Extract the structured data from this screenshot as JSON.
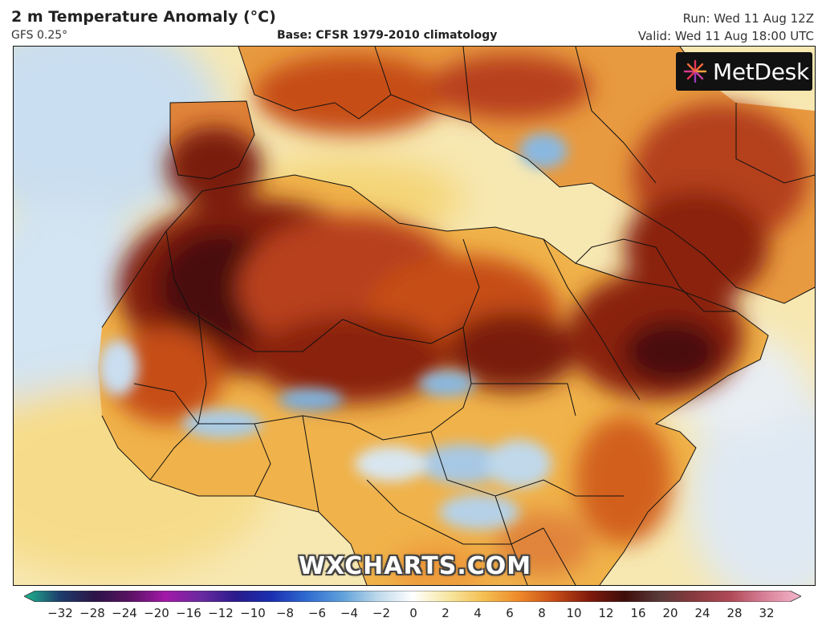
{
  "header": {
    "title": "2 m Temperature Anomaly (°C)",
    "model": "GFS 0.25°",
    "base": "Base: CFSR 1979-2010 climatology",
    "run": "Run: Wed 11 Aug 12Z",
    "valid": "Valid: Wed 11 Aug 18:00 UTC"
  },
  "logo": {
    "text": "MetDesk",
    "icon": "metdesk-star-icon"
  },
  "watermark": "WXCHARTS.COM",
  "colorbar": {
    "ticks": [
      "−32",
      "−28",
      "−24",
      "−20",
      "−16",
      "−12",
      "−10",
      "−8",
      "−6",
      "−4",
      "−2",
      "0",
      "2",
      "4",
      "6",
      "8",
      "10",
      "12",
      "16",
      "20",
      "24",
      "28",
      "32"
    ],
    "colors": [
      "#1fb88f",
      "#1d3d6b",
      "#2b1547",
      "#5a1263",
      "#a21aa8",
      "#6a2aa0",
      "#2a1b8c",
      "#1a2fb0",
      "#2f6bd0",
      "#5fa0da",
      "#bcd8ea",
      "#ffffff",
      "#f7e7a3",
      "#f4c053",
      "#ee8a2a",
      "#c64d16",
      "#801a0c",
      "#3e0e0b",
      "#5a3a3a",
      "#8a3a3e",
      "#b04a58",
      "#d9829a",
      "#f4b8cc"
    ]
  }
}
